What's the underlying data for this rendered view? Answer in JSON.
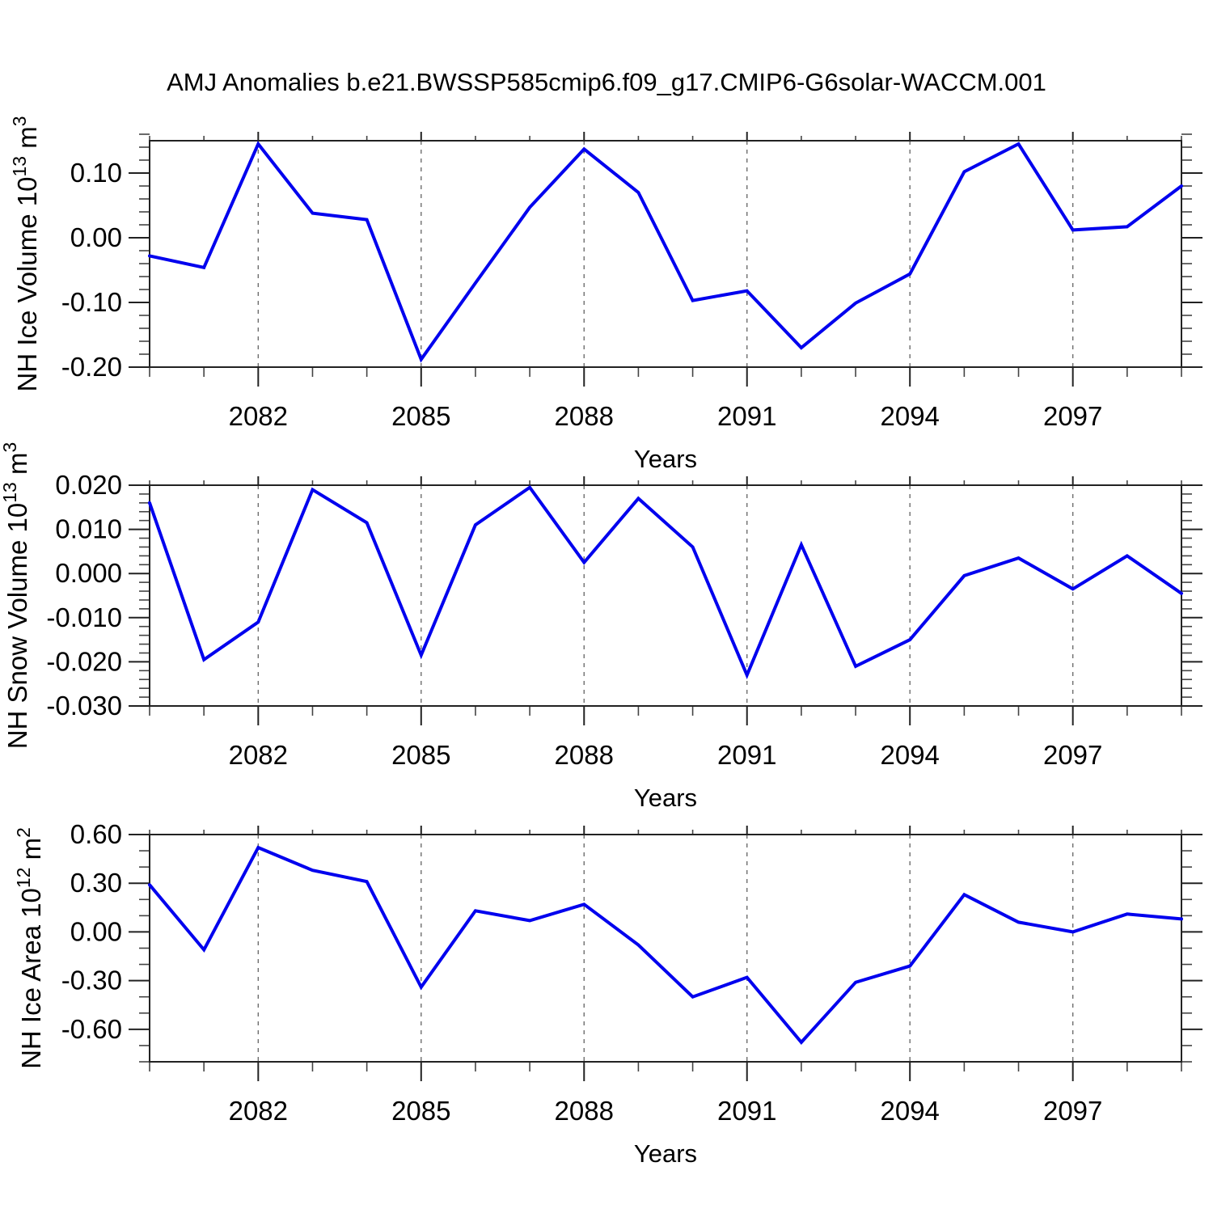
{
  "title": "AMJ Anomalies b.e21.BWSSP585cmip6.f09_g17.CMIP6-G6solar-WACCM.001",
  "colors": {
    "line": "#0000EE",
    "axis": "#222222",
    "gridline": "#6e6e6e",
    "minor_tick": "#444444",
    "text": "#000000",
    "background": "#ffffff"
  },
  "axes": {
    "x_label": "Years",
    "x_start": 2080,
    "x_end": 2099,
    "x_major_ticks": [
      2082,
      2085,
      2088,
      2091,
      2094,
      2097
    ],
    "x_minor_step": 1
  },
  "chart_data": [
    {
      "id": "nh-ice-volume",
      "type": "line",
      "ylabel_segments": [
        {
          "t": "NH Ice Volume 10"
        },
        {
          "t": "13",
          "sup": true
        },
        {
          "t": " m"
        },
        {
          "t": "3",
          "sup": true
        }
      ],
      "xlabel": "Years",
      "x": [
        2080,
        2081,
        2082,
        2083,
        2084,
        2085,
        2086,
        2087,
        2088,
        2089,
        2090,
        2091,
        2092,
        2093,
        2094,
        2095,
        2096,
        2097,
        2098,
        2099
      ],
      "values": [
        -0.028,
        -0.046,
        0.145,
        0.038,
        0.028,
        -0.188,
        -0.07,
        0.047,
        0.137,
        0.07,
        -0.097,
        -0.082,
        -0.17,
        -0.101,
        -0.056,
        0.102,
        0.145,
        0.012,
        0.017,
        0.08
      ],
      "ylim": [
        -0.2,
        0.15
      ],
      "y_major_ticks": [
        0.1,
        0.0,
        -0.1,
        -0.2
      ],
      "y_tick_labels": [
        "0.10",
        "0.00",
        "-0.10",
        "-0.20"
      ],
      "y_minor_step": 0.02,
      "grid": "vertical-dashed-at-major-years",
      "legend": "none"
    },
    {
      "id": "nh-snow-volume",
      "type": "line",
      "ylabel_segments": [
        {
          "t": "NH Snow Volume 10"
        },
        {
          "t": "13",
          "sup": true
        },
        {
          "t": " m"
        },
        {
          "t": "3",
          "sup": true
        }
      ],
      "xlabel": "Years",
      "x": [
        2080,
        2081,
        2082,
        2083,
        2084,
        2085,
        2086,
        2087,
        2088,
        2089,
        2090,
        2091,
        2092,
        2093,
        2094,
        2095,
        2096,
        2097,
        2098,
        2099
      ],
      "values": [
        0.016,
        -0.0195,
        -0.011,
        0.019,
        0.0115,
        -0.0185,
        0.011,
        0.0195,
        0.0025,
        0.017,
        0.006,
        -0.023,
        0.0065,
        -0.021,
        -0.015,
        -0.0005,
        0.0035,
        -0.0035,
        0.004,
        -0.0045
      ],
      "ylim": [
        -0.03,
        0.02
      ],
      "y_major_ticks": [
        0.02,
        0.01,
        0.0,
        -0.01,
        -0.02,
        -0.03
      ],
      "y_tick_labels": [
        "0.020",
        "0.010",
        "0.000",
        "-0.010",
        "-0.020",
        "-0.030"
      ],
      "y_minor_step": 0.002,
      "grid": "vertical-dashed-at-major-years",
      "legend": "none"
    },
    {
      "id": "nh-ice-area",
      "type": "line",
      "ylabel_segments": [
        {
          "t": "NH Ice Area 10"
        },
        {
          "t": "12",
          "sup": true
        },
        {
          "t": " m"
        },
        {
          "t": "2",
          "sup": true
        }
      ],
      "xlabel": "Years",
      "x": [
        2080,
        2081,
        2082,
        2083,
        2084,
        2085,
        2086,
        2087,
        2088,
        2089,
        2090,
        2091,
        2092,
        2093,
        2094,
        2095,
        2096,
        2097,
        2098,
        2099
      ],
      "values": [
        0.29,
        -0.11,
        0.52,
        0.38,
        0.31,
        -0.34,
        0.13,
        0.07,
        0.17,
        -0.08,
        -0.4,
        -0.28,
        -0.68,
        -0.31,
        -0.21,
        0.23,
        0.06,
        0.0,
        0.11,
        0.08
      ],
      "ylim": [
        -0.8,
        0.6
      ],
      "y_major_ticks": [
        0.6,
        0.3,
        0.0,
        -0.3,
        -0.6
      ],
      "y_tick_labels": [
        "0.60",
        "0.30",
        "0.00",
        "-0.30",
        "-0.60"
      ],
      "y_minor_step": 0.1,
      "grid": "vertical-dashed-at-major-years",
      "legend": "none"
    }
  ]
}
